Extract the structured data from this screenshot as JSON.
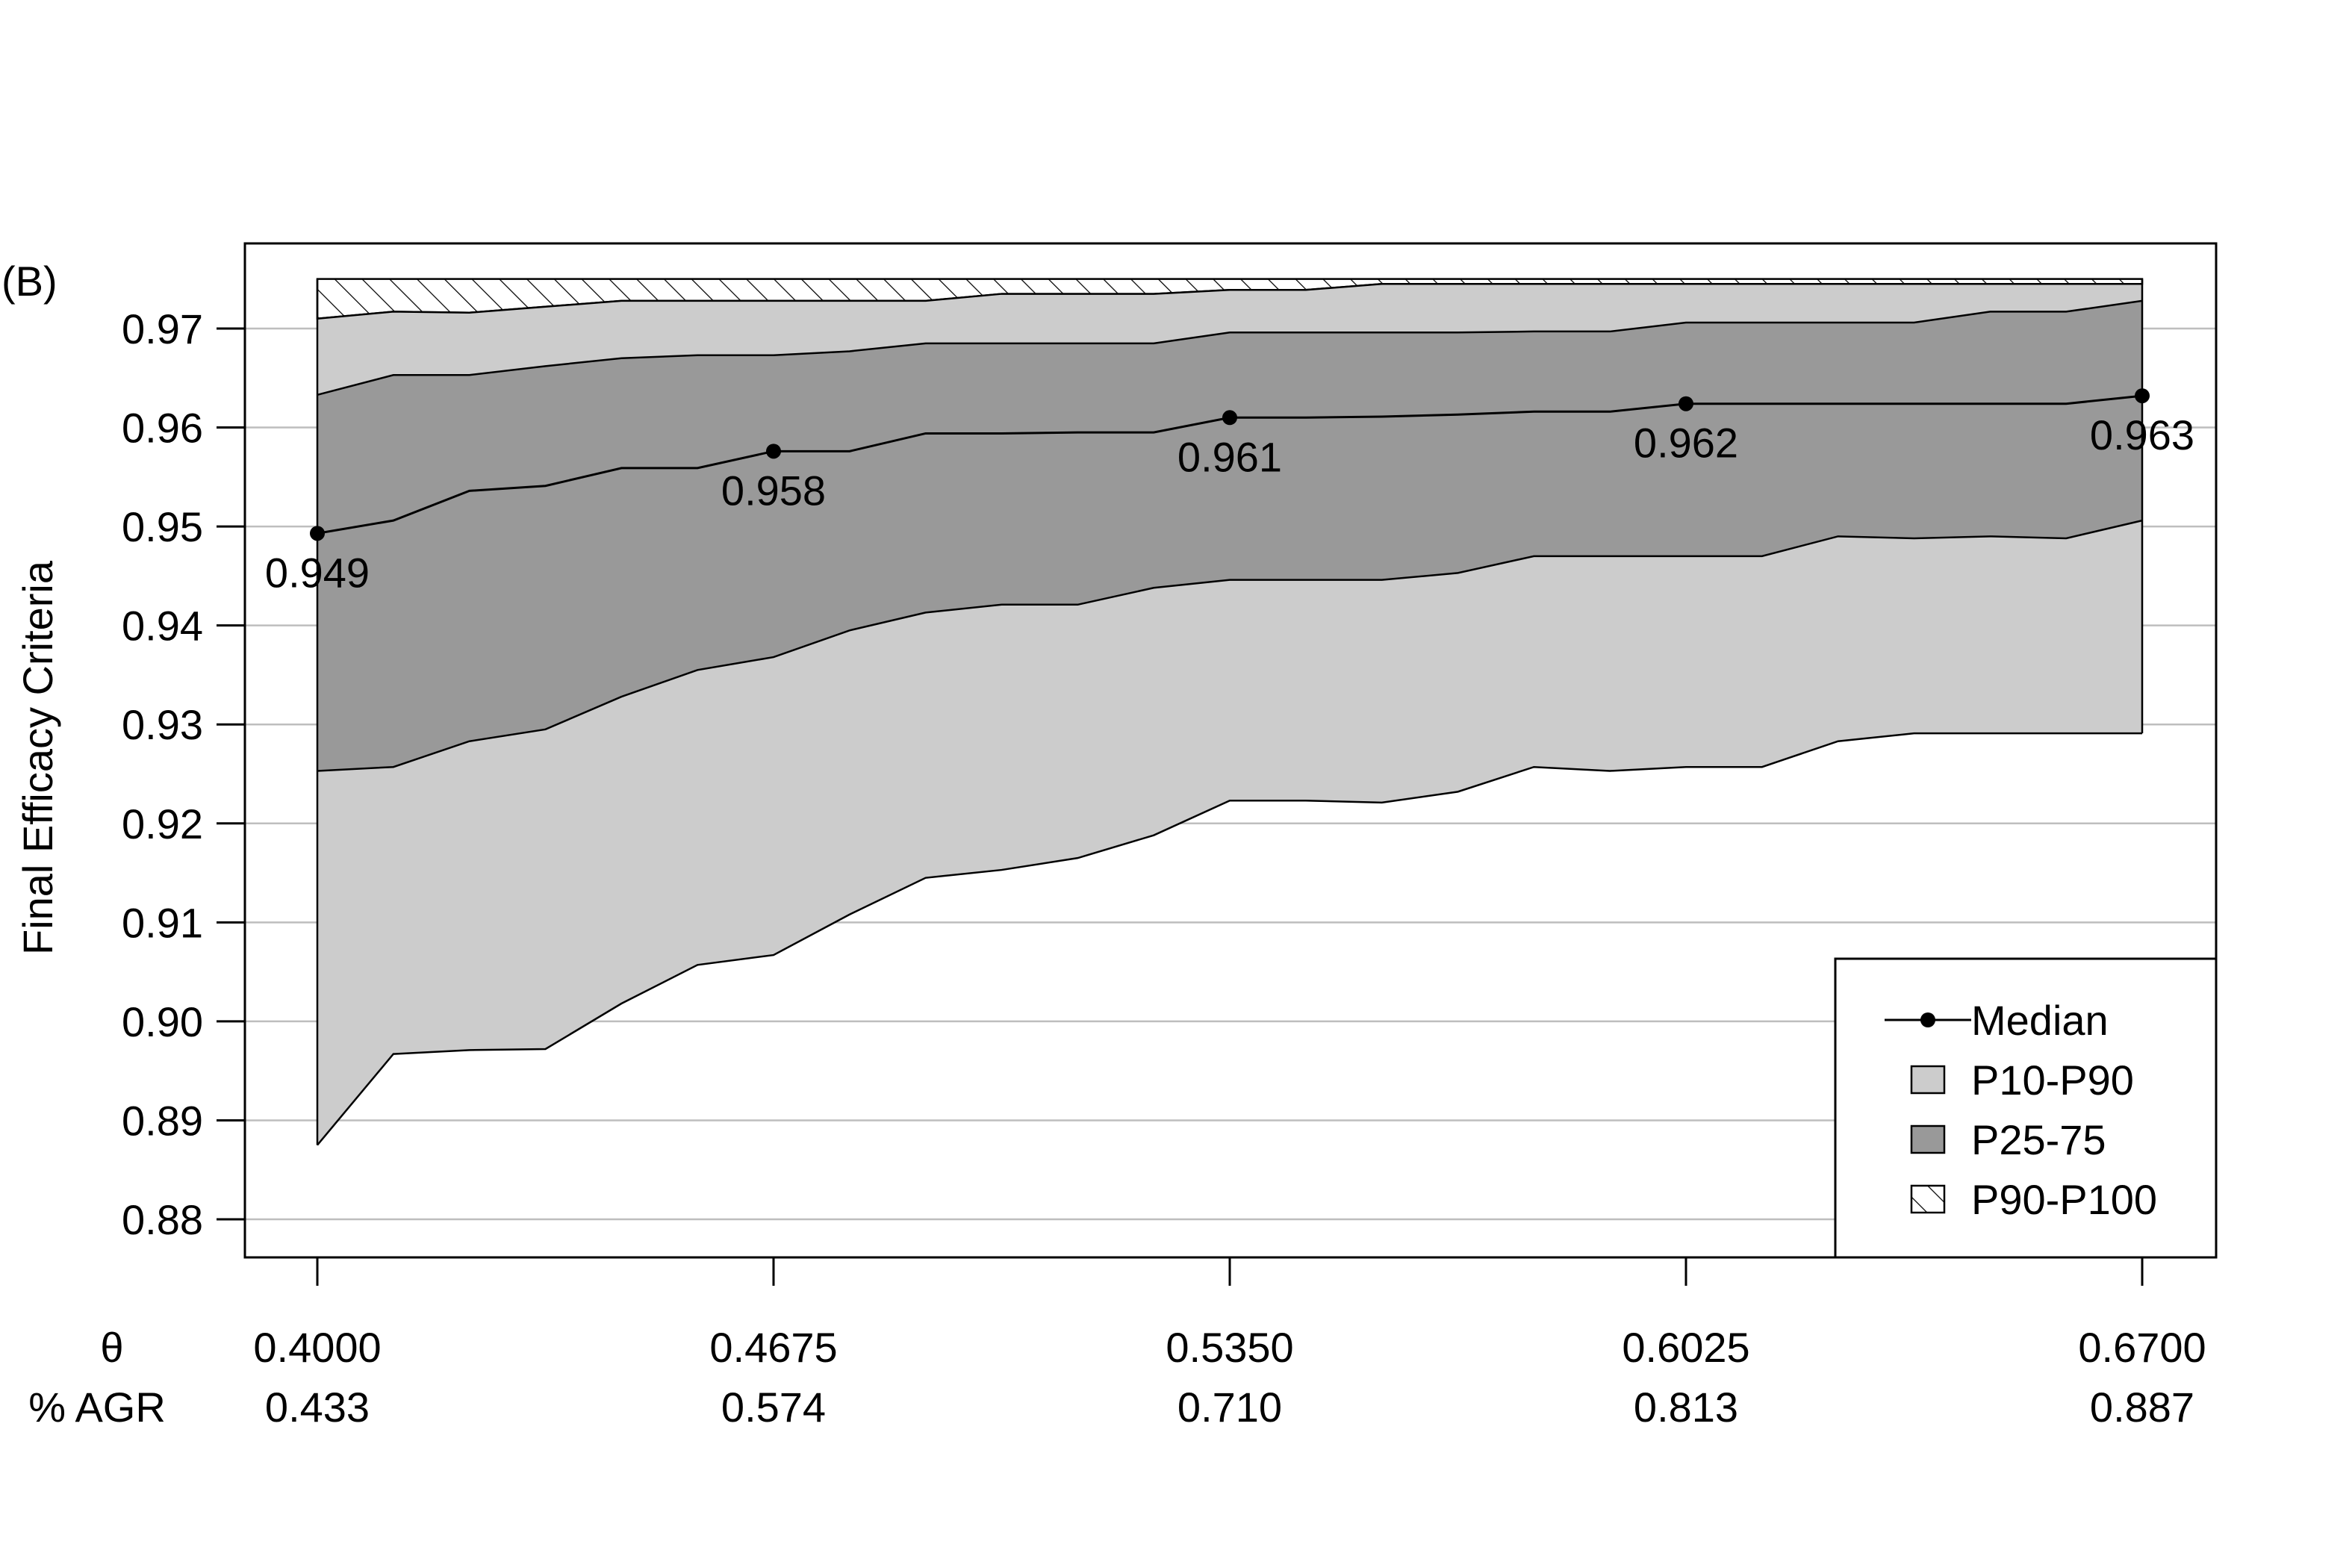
{
  "chart_data": {
    "type": "area",
    "panel_label": "(B)",
    "title": "",
    "ylabel": "Final Efficacy Criteria",
    "ylim": [
      0.8763,
      0.9788
    ],
    "xlim": [
      0.3905,
      0.7775
    ],
    "yticks": [
      0.88,
      0.89,
      0.9,
      0.91,
      0.92,
      0.93,
      0.94,
      0.95,
      0.96,
      0.97
    ],
    "ytick_labels": [
      "0.88",
      "0.89",
      "0.90",
      "0.91",
      "0.92",
      "0.93",
      "0.94",
      "0.95",
      "0.96",
      "0.97"
    ],
    "grid": "horizontal",
    "xaxis_rows": [
      {
        "label": "θ",
        "ticks": [
          0.4,
          0.4675,
          0.535,
          0.6025,
          0.67
        ],
        "tick_labels": [
          "0.4000",
          "0.4675",
          "0.5350",
          "0.6025",
          "0.6700"
        ]
      },
      {
        "label": "% AGR",
        "tick_labels": [
          "0.433",
          "0.574",
          "0.710",
          "0.813",
          "0.887"
        ]
      }
    ],
    "x": [
      0.4,
      0.41125,
      0.4225,
      0.43375,
      0.445,
      0.45625,
      0.4675,
      0.47875,
      0.49,
      0.50125,
      0.5125,
      0.52375,
      0.535,
      0.54625,
      0.5575,
      0.56875,
      0.58,
      0.59125,
      0.6025,
      0.61375,
      0.625,
      0.63625,
      0.6475,
      0.65875,
      0.67
    ],
    "series": [
      {
        "name": "P10-P90",
        "role": "band",
        "lower": [
          0.8875,
          0.8967,
          0.8971,
          0.8972,
          0.9018,
          0.9057,
          0.9067,
          0.9108,
          0.9145,
          0.9153,
          0.9165,
          0.9188,
          0.9223,
          0.9223,
          0.9221,
          0.9232,
          0.9257,
          0.9253,
          0.9257,
          0.9257,
          0.9283,
          0.9291,
          0.9291,
          0.9291,
          0.9291
        ],
        "upper": [
          0.971,
          0.9717,
          0.9716,
          0.9722,
          0.9728,
          0.9728,
          0.9728,
          0.9728,
          0.9728,
          0.9735,
          0.9735,
          0.9735,
          0.9739,
          0.9739,
          0.9745,
          0.9745,
          0.9745,
          0.9745,
          0.9745,
          0.9745,
          0.9745,
          0.9745,
          0.9745,
          0.9745,
          0.9745
        ]
      },
      {
        "name": "P25-75",
        "role": "band",
        "lower": [
          0.9253,
          0.9257,
          0.9283,
          0.9295,
          0.9328,
          0.9355,
          0.9368,
          0.9395,
          0.9413,
          0.9421,
          0.9421,
          0.9438,
          0.9446,
          0.9446,
          0.9446,
          0.9453,
          0.947,
          0.947,
          0.947,
          0.947,
          0.949,
          0.9488,
          0.949,
          0.9488,
          0.9506
        ],
        "upper": [
          0.9633,
          0.9653,
          0.9653,
          0.9662,
          0.967,
          0.9673,
          0.9673,
          0.9677,
          0.9685,
          0.9685,
          0.9685,
          0.9685,
          0.9696,
          0.9696,
          0.9696,
          0.9696,
          0.9697,
          0.9697,
          0.9706,
          0.9706,
          0.9706,
          0.9706,
          0.9717,
          0.9717,
          0.9728
        ]
      },
      {
        "name": "Median",
        "role": "line",
        "values": [
          0.9493,
          0.9506,
          0.9536,
          0.9541,
          0.9559,
          0.9559,
          0.9576,
          0.9576,
          0.9594,
          0.9594,
          0.9595,
          0.9595,
          0.961,
          0.961,
          0.9611,
          0.9613,
          0.9616,
          0.9616,
          0.9624,
          0.9624,
          0.9624,
          0.9624,
          0.9624,
          0.9624,
          0.9632
        ]
      },
      {
        "name": "P90-P100",
        "role": "band",
        "lower": [
          0.971,
          0.9717,
          0.9716,
          0.9722,
          0.9728,
          0.9728,
          0.9728,
          0.9728,
          0.9728,
          0.9735,
          0.9735,
          0.9735,
          0.9739,
          0.9739,
          0.9745,
          0.9745,
          0.9745,
          0.9745,
          0.9745,
          0.9745,
          0.9745,
          0.9745,
          0.9745,
          0.9745,
          0.9745
        ],
        "upper": [
          0.975,
          0.975,
          0.975,
          0.975,
          0.975,
          0.975,
          0.975,
          0.975,
          0.975,
          0.975,
          0.975,
          0.975,
          0.975,
          0.975,
          0.975,
          0.975,
          0.975,
          0.975,
          0.975,
          0.975,
          0.975,
          0.975,
          0.975,
          0.975,
          0.975
        ]
      }
    ],
    "median_points": [
      {
        "x": 0.4,
        "y": 0.9493,
        "label": "0.949"
      },
      {
        "x": 0.4675,
        "y": 0.9576,
        "label": "0.958"
      },
      {
        "x": 0.535,
        "y": 0.961,
        "label": "0.961"
      },
      {
        "x": 0.6025,
        "y": 0.9624,
        "label": "0.962"
      },
      {
        "x": 0.67,
        "y": 0.9632,
        "label": "0.963"
      }
    ],
    "legend": {
      "placement": "bottom-right",
      "entries": [
        {
          "label": "Median",
          "symbol": "line-point"
        },
        {
          "label": "P10-P90",
          "symbol": "box",
          "color": "#cccccc"
        },
        {
          "label": "P25-75",
          "symbol": "box",
          "color": "#999999"
        },
        {
          "label": "P90-P100",
          "symbol": "hatch"
        }
      ]
    },
    "colors": {
      "p10_p90": "#cccccc",
      "p25_75": "#999999",
      "grid": "#bebebe",
      "line": "#000000"
    }
  }
}
